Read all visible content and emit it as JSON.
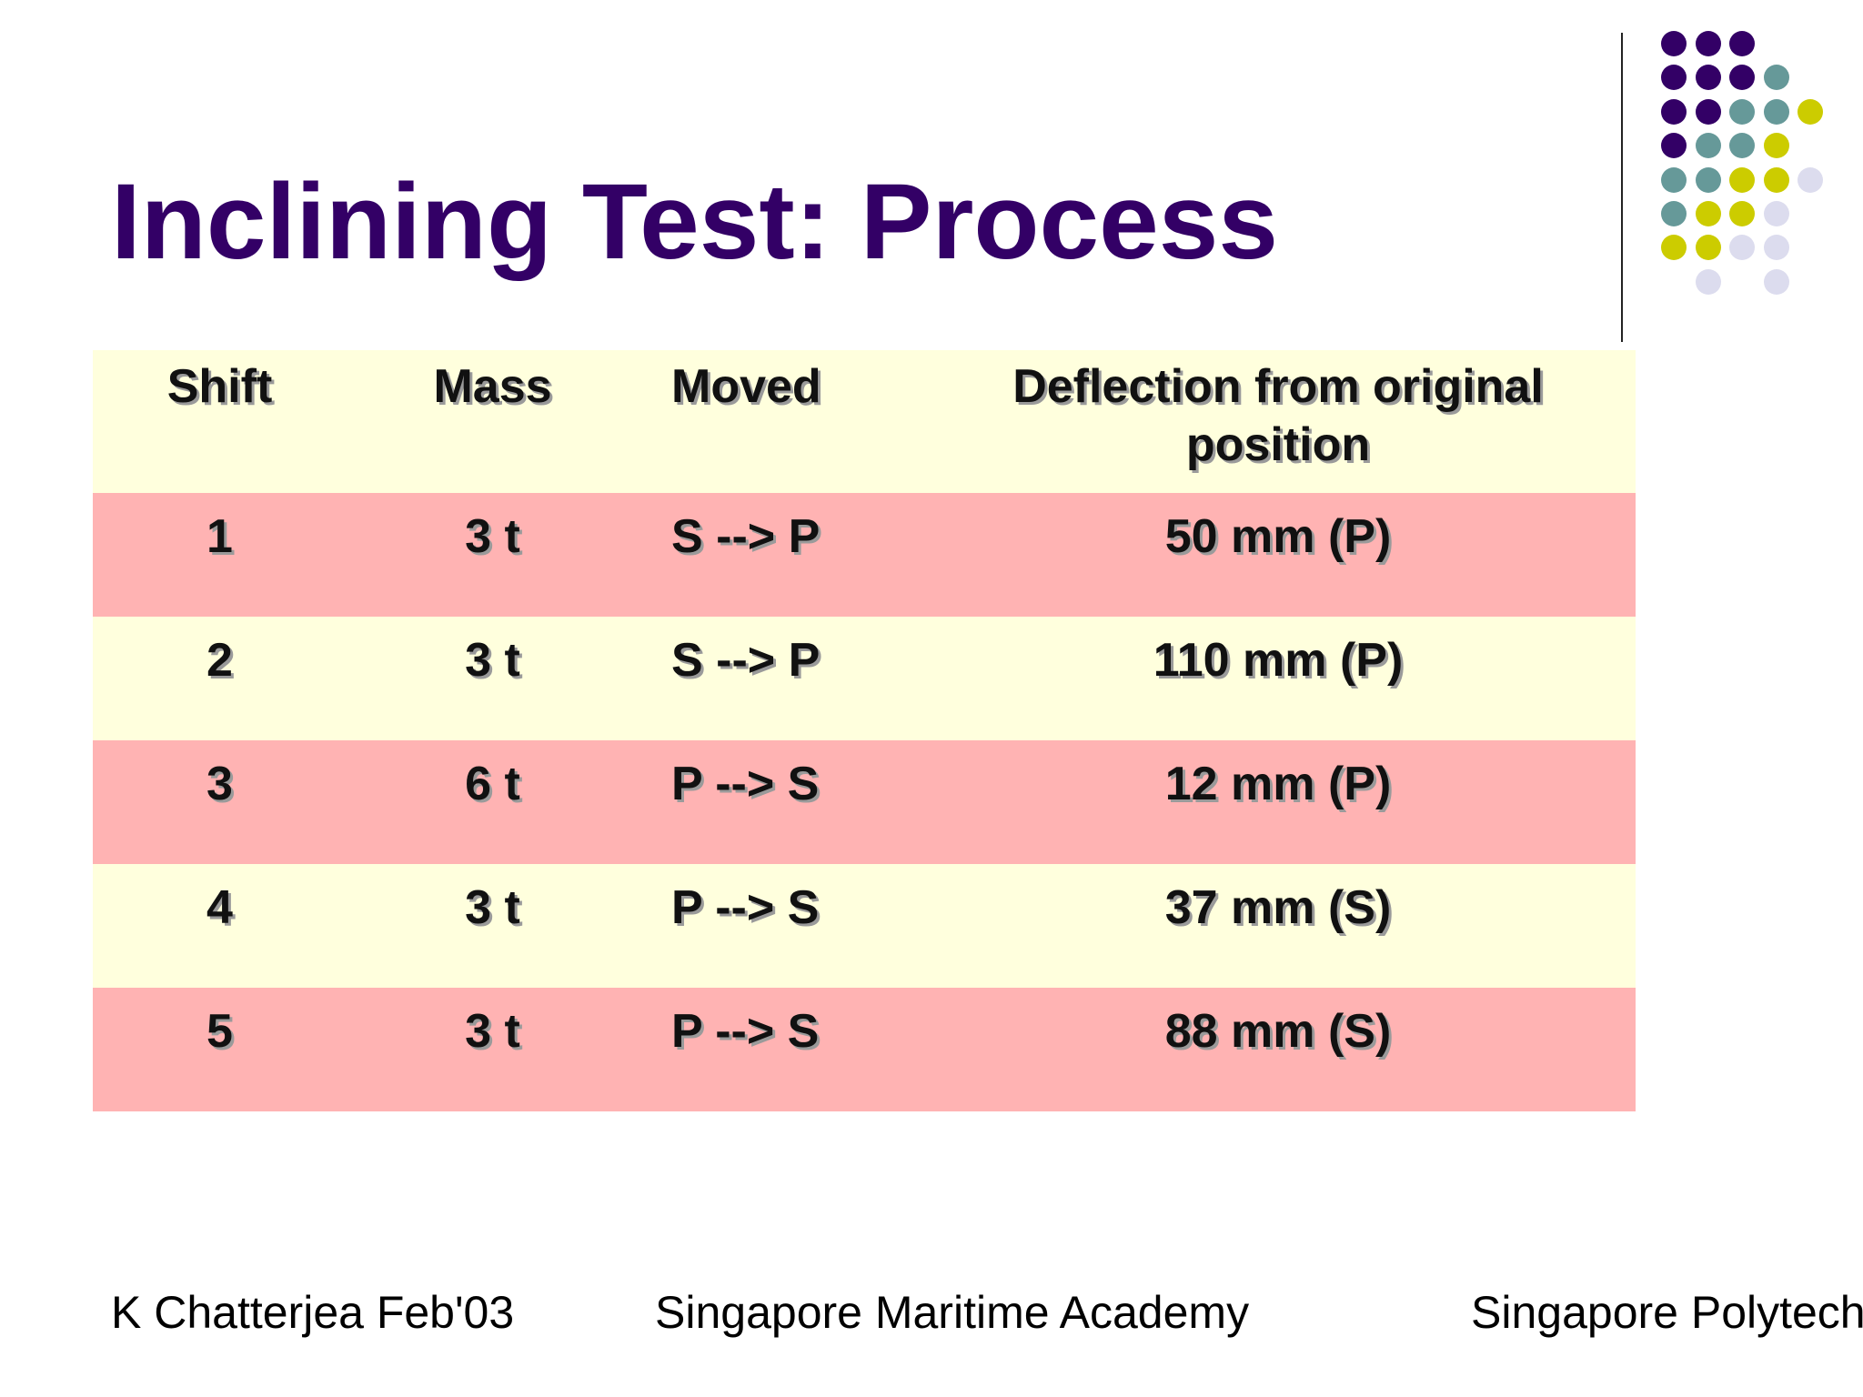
{
  "title": "Inclining Test: Process",
  "table": {
    "headers": {
      "shift": "Shift",
      "mass": "Mass",
      "moved": "Moved",
      "deflection_line1": "Deflection from original",
      "deflection_line2": "position"
    },
    "rows": [
      {
        "shift": "1",
        "mass": "3 t",
        "moved": "S --> P",
        "deflection": "50 mm (P)"
      },
      {
        "shift": "2",
        "mass": "3 t",
        "moved": "S --> P",
        "deflection": "110 mm (P)"
      },
      {
        "shift": "3",
        "mass": "6 t",
        "moved": "P --> S",
        "deflection": "12 mm (P)"
      },
      {
        "shift": "4",
        "mass": "3 t",
        "moved": "P --> S",
        "deflection": "37 mm (S)"
      },
      {
        "shift": "5",
        "mass": "3 t",
        "moved": "P --> S",
        "deflection": "88 mm (S)"
      }
    ]
  },
  "footer": {
    "author": "K Chatterjea Feb'03",
    "academy": "Singapore Maritime Academy",
    "polytechnic": "Singapore Polytech"
  },
  "colors": {
    "title": "#330066",
    "row_pink": "#ffb3b3",
    "row_cream": "#ffffdd",
    "dot_purple": "#330066",
    "dot_teal": "#669999",
    "dot_olive": "#cccc00",
    "dot_lavender": "#dcdcee"
  }
}
